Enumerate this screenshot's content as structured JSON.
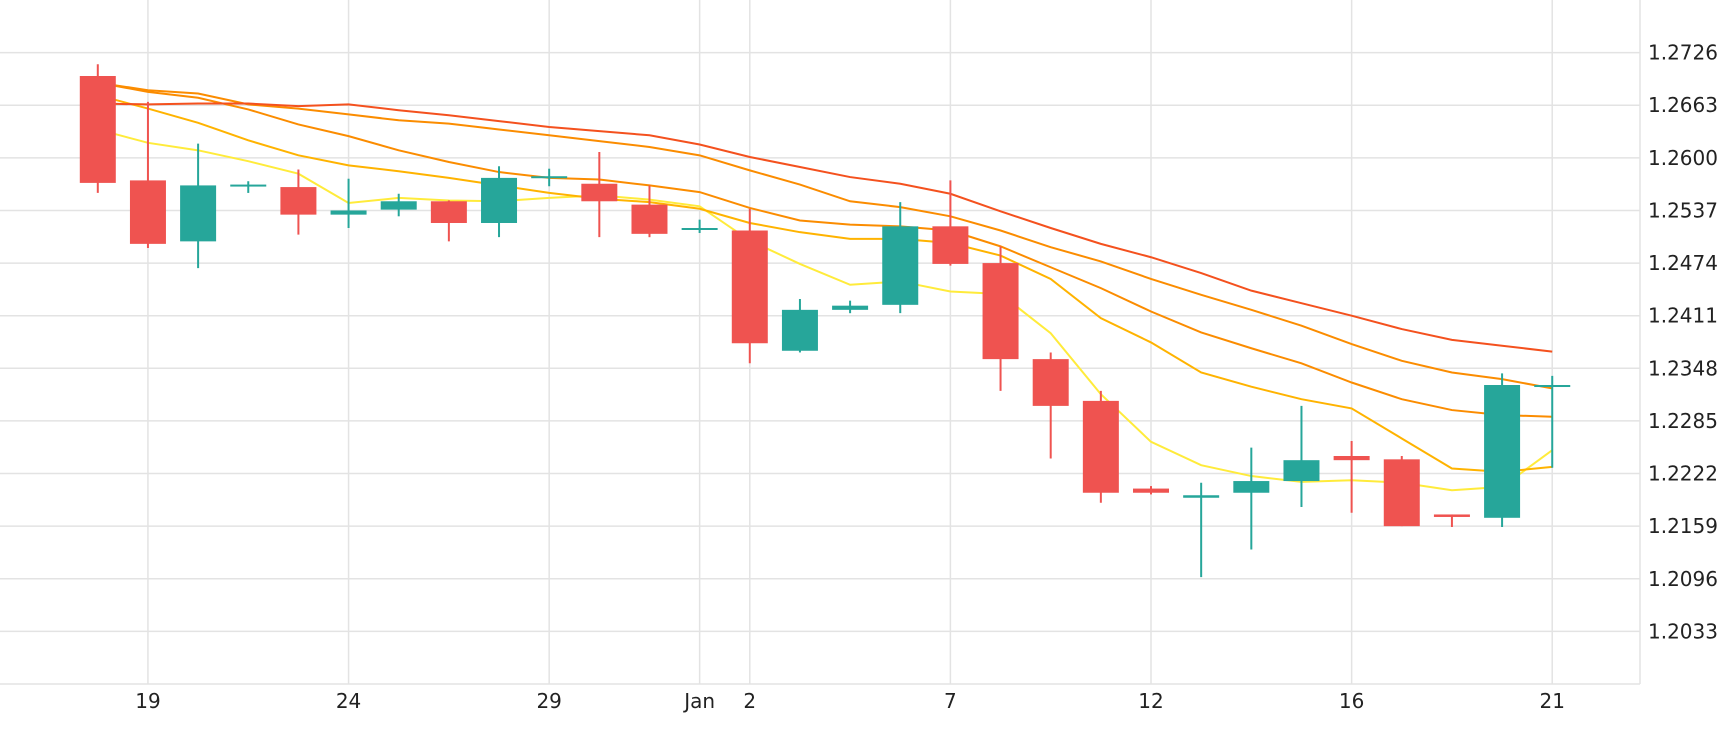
{
  "colors": {
    "up": "#26a69a",
    "down": "#ef5350",
    "grid": "#e3e3e3",
    "text": "#222222",
    "ma_yellow": "#ffeb3b",
    "ma_amber": "#ffb300",
    "ma_orange": "#fb8c00",
    "ma_red": "#f4511e"
  },
  "chart_data": {
    "type": "candlestick",
    "grid": true,
    "y_axis": {
      "position": "right",
      "ticks": [
        "1.2726",
        "1.2663",
        "1.2600",
        "1.2537",
        "1.2474",
        "1.2411",
        "1.2348",
        "1.2285",
        "1.2222",
        "1.2159",
        "1.2096",
        "1.2033"
      ],
      "range": [
        1.197,
        1.2789
      ]
    },
    "x_axis": {
      "ticks": [
        {
          "label": "19",
          "index": 1
        },
        {
          "label": "24",
          "index": 5
        },
        {
          "label": "29",
          "index": 9
        },
        {
          "label": "Jan",
          "index": 12
        },
        {
          "label": "2",
          "index": 13
        },
        {
          "label": "7",
          "index": 17
        },
        {
          "label": "12",
          "index": 21
        },
        {
          "label": "16",
          "index": 25
        },
        {
          "label": "21",
          "index": 29
        }
      ],
      "range": [
        -1.95,
        30.75
      ]
    },
    "candles": [
      {
        "o": 1.2698,
        "h": 1.2712,
        "l": 1.2558,
        "c": 1.257
      },
      {
        "o": 1.2573,
        "h": 1.2667,
        "l": 1.2492,
        "c": 1.2497
      },
      {
        "o": 1.25,
        "h": 1.2617,
        "l": 1.2468,
        "c": 1.2567
      },
      {
        "o": 1.2566,
        "h": 1.2572,
        "l": 1.2558,
        "c": 1.2568
      },
      {
        "o": 1.2565,
        "h": 1.2586,
        "l": 1.2508,
        "c": 1.2532
      },
      {
        "o": 1.2532,
        "h": 1.2575,
        "l": 1.2516,
        "c": 1.2537
      },
      {
        "o": 1.2538,
        "h": 1.2557,
        "l": 1.253,
        "c": 1.2548
      },
      {
        "o": 1.2548,
        "h": 1.2549,
        "l": 1.25,
        "c": 1.2522
      },
      {
        "o": 1.2522,
        "h": 1.259,
        "l": 1.2505,
        "c": 1.2576
      },
      {
        "o": 1.2577,
        "h": 1.2587,
        "l": 1.2566,
        "c": 1.2578
      },
      {
        "o": 1.2569,
        "h": 1.2607,
        "l": 1.2505,
        "c": 1.2548
      },
      {
        "o": 1.2544,
        "h": 1.2567,
        "l": 1.2505,
        "c": 1.2509
      },
      {
        "o": 1.2516,
        "h": 1.2526,
        "l": 1.251,
        "c": 1.2516
      },
      {
        "o": 1.2513,
        "h": 1.2539,
        "l": 1.2354,
        "c": 1.2378
      },
      {
        "o": 1.2369,
        "h": 1.2431,
        "l": 1.2367,
        "c": 1.2418
      },
      {
        "o": 1.2418,
        "h": 1.2429,
        "l": 1.2414,
        "c": 1.2423
      },
      {
        "o": 1.2424,
        "h": 1.2547,
        "l": 1.2414,
        "c": 1.2518
      },
      {
        "o": 1.2518,
        "h": 1.2573,
        "l": 1.2471,
        "c": 1.2473
      },
      {
        "o": 1.2474,
        "h": 1.2494,
        "l": 1.2321,
        "c": 1.2359
      },
      {
        "o": 1.2359,
        "h": 1.2367,
        "l": 1.224,
        "c": 1.2303
      },
      {
        "o": 1.2309,
        "h": 1.2321,
        "l": 1.2187,
        "c": 1.2199
      },
      {
        "o": 1.2204,
        "h": 1.2207,
        "l": 1.2197,
        "c": 1.2199
      },
      {
        "o": 1.2193,
        "h": 1.2211,
        "l": 1.2098,
        "c": 1.2196
      },
      {
        "o": 1.2199,
        "h": 1.2253,
        "l": 1.2131,
        "c": 1.2213
      },
      {
        "o": 1.2213,
        "h": 1.2303,
        "l": 1.2182,
        "c": 1.2238
      },
      {
        "o": 1.2243,
        "h": 1.2261,
        "l": 1.2175,
        "c": 1.2238
      },
      {
        "o": 1.2239,
        "h": 1.2243,
        "l": 1.2159,
        "c": 1.2159
      },
      {
        "o": 1.2173,
        "h": 1.2173,
        "l": 1.2158,
        "c": 1.217
      },
      {
        "o": 1.2169,
        "h": 1.2342,
        "l": 1.2158,
        "c": 1.2328
      },
      {
        "o": 1.2328,
        "h": 1.2339,
        "l": 1.2229,
        "c": 1.2328
      }
    ],
    "moving_averages": [
      {
        "color_key": "ma_yellow",
        "values": [
          1.2634,
          1.2618,
          1.2609,
          1.2596,
          1.2581,
          1.2546,
          1.2552,
          1.2549,
          1.2548,
          1.2552,
          1.2555,
          1.255,
          1.2542,
          1.2501,
          1.2473,
          1.2448,
          1.2452,
          1.244,
          1.2437,
          1.239,
          1.2317,
          1.226,
          1.2232,
          1.2219,
          1.2212,
          1.2214,
          1.2211,
          1.2202,
          1.2206,
          1.225
        ]
      },
      {
        "color_key": "ma_amber",
        "values": [
          1.2675,
          1.2659,
          1.2642,
          1.2621,
          1.2603,
          1.2591,
          1.2584,
          1.2576,
          1.2567,
          1.2558,
          1.2551,
          1.2547,
          1.2539,
          1.2522,
          1.2511,
          1.2503,
          1.2503,
          1.2498,
          1.2483,
          1.2455,
          1.2408,
          1.2379,
          1.2343,
          1.2326,
          1.2311,
          1.23,
          1.2264,
          1.2228,
          1.2224,
          1.223
        ]
      },
      {
        "color_key": "ma_orange",
        "values": [
          1.269,
          1.2679,
          1.2672,
          1.2658,
          1.264,
          1.2626,
          1.2609,
          1.2595,
          1.2583,
          1.2576,
          1.2574,
          1.2567,
          1.2559,
          1.254,
          1.2525,
          1.252,
          1.2518,
          1.2513,
          1.2494,
          1.2469,
          1.2444,
          1.2416,
          1.2391,
          1.2372,
          1.2354,
          1.2331,
          1.2311,
          1.2298,
          1.2292,
          1.229
        ]
      },
      {
        "color_key": "ma_orange",
        "values": [
          1.269,
          1.2681,
          1.2677,
          1.2664,
          1.2659,
          1.2652,
          1.2645,
          1.2641,
          1.2634,
          1.2627,
          1.262,
          1.2613,
          1.2603,
          1.2585,
          1.2568,
          1.2548,
          1.2541,
          1.253,
          1.2513,
          1.2493,
          1.2476,
          1.2455,
          1.2436,
          1.2418,
          1.2399,
          1.2377,
          1.2357,
          1.2343,
          1.2335,
          1.2324
        ]
      },
      {
        "color_key": "ma_red",
        "values": [
          1.2665,
          1.2664,
          1.2665,
          1.2665,
          1.2662,
          1.2664,
          1.2657,
          1.2651,
          1.2644,
          1.2637,
          1.2632,
          1.2627,
          1.2616,
          1.2601,
          1.2589,
          1.2577,
          1.2569,
          1.2557,
          1.2536,
          1.2516,
          1.2497,
          1.2481,
          1.2462,
          1.2441,
          1.2426,
          1.2411,
          1.2395,
          1.2382,
          1.2375,
          1.2368
        ]
      }
    ]
  }
}
